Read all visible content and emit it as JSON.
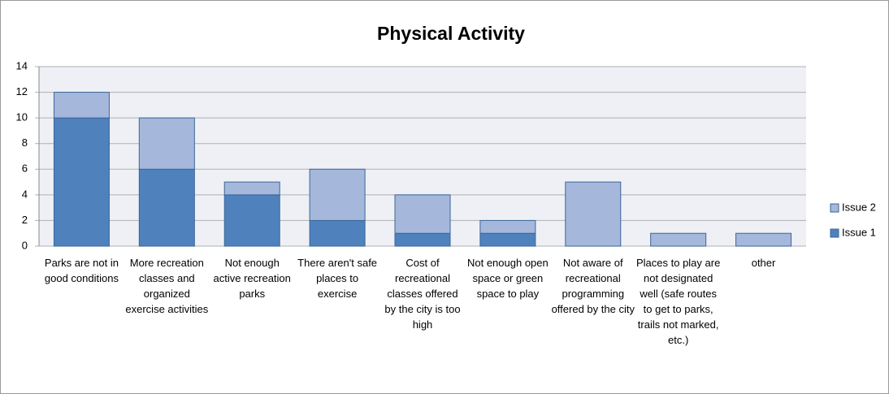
{
  "chart_data": {
    "type": "bar",
    "stacked": true,
    "title": "Physical Activity",
    "categories": [
      "Parks are not in good conditions",
      "More recreation classes and organized exercise activities",
      "Not enough active recreation parks",
      "There aren't safe places to exercise",
      "Cost of recreational classes offered by the city is too high",
      "Not enough open space or green space to play",
      "Not aware of recreational programming offered by the city",
      "Places to play are not designated well (safe routes to get to parks, trails not marked, etc.)",
      "other"
    ],
    "series": [
      {
        "name": "Issue 1",
        "color": "#4f81bd",
        "values": [
          10,
          6,
          4,
          2,
          1,
          1,
          0,
          0,
          0
        ]
      },
      {
        "name": "Issue 2",
        "color": "#a5b8dc",
        "values": [
          2,
          4,
          1,
          4,
          3,
          1,
          5,
          1,
          1
        ]
      }
    ],
    "ylim": [
      0,
      14
    ],
    "yticks": [
      0,
      2,
      4,
      6,
      8,
      10,
      12,
      14
    ],
    "grid": true,
    "legend": "right"
  }
}
